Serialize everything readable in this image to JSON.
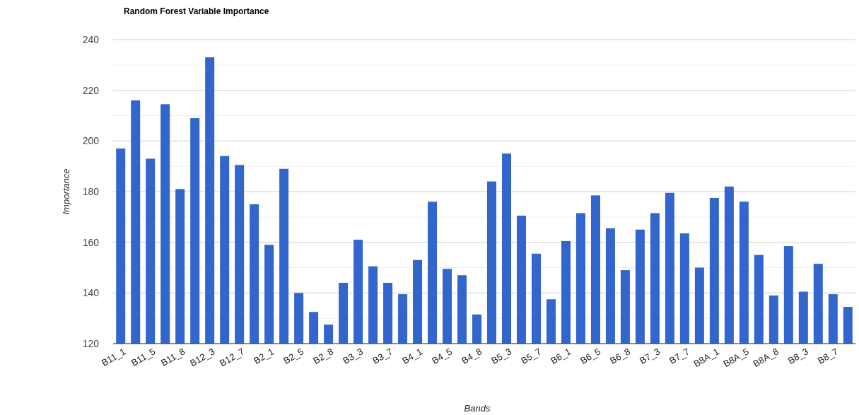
{
  "chart_data": {
    "type": "bar",
    "title": "Random Forest Variable Importance",
    "xlabel": "Bands",
    "ylabel": "Importance",
    "categories": [
      "B11_1",
      null,
      "B11_5",
      null,
      "B11_8",
      null,
      "B12_3",
      null,
      "B12_7",
      null,
      "B2_1",
      null,
      "B2_5",
      null,
      "B2_8",
      null,
      "B3_3",
      null,
      "B3_7",
      null,
      "B4_1",
      null,
      "B4_5",
      null,
      "B4_8",
      null,
      "B5_3",
      null,
      "B5_7",
      null,
      "B6_1",
      null,
      "B6_5",
      null,
      "B6_8",
      null,
      "B7_3",
      null,
      "B7_7",
      null,
      "B8A_1",
      null,
      "B8A_5",
      null,
      "B8A_8",
      null,
      "B8_3",
      null,
      "B8_7",
      null
    ],
    "values": [
      197,
      216,
      193,
      214.5,
      181,
      209,
      233,
      194,
      190.5,
      175,
      159,
      189,
      140,
      132.5,
      127.5,
      144,
      161,
      150.5,
      144,
      139.5,
      153,
      176,
      149.5,
      147,
      131.5,
      184,
      195,
      170.5,
      155.5,
      137.5,
      160.5,
      171.5,
      178.5,
      165.5,
      149,
      165,
      171.5,
      179.5,
      163.5,
      150,
      177.5,
      182,
      176,
      155,
      139,
      158.5,
      140.5,
      151.5,
      139.5,
      134.5
    ],
    "color": "#3366cc",
    "ylim": [
      120,
      240
    ],
    "yticks": [
      120,
      {
        "value": 130,
        "label": null
      },
      140,
      {
        "value": 150,
        "label": null
      },
      160,
      {
        "value": 170,
        "label": null
      },
      180,
      {
        "value": 190,
        "label": null
      },
      200,
      {
        "value": 210,
        "label": null
      },
      220,
      {
        "value": 230,
        "label": null
      },
      240
    ],
    "grid": "y"
  }
}
